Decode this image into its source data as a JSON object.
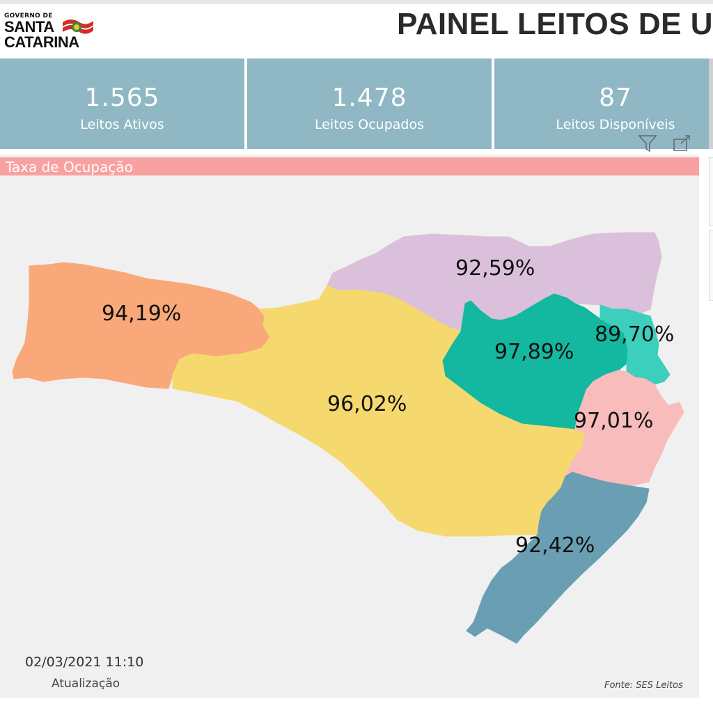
{
  "header": {
    "logo_line_gov": "GOVERNO DE",
    "logo_line_1": "SANTA",
    "logo_line_2": "CATARINA",
    "title": "PAINEL LEITOS DE U"
  },
  "kpis": [
    {
      "value": "1.565",
      "label": "Leitos Ativos"
    },
    {
      "value": "1.478",
      "label": "Leitos Ocupados"
    },
    {
      "value": "87",
      "label": "Leitos Disponíveis"
    }
  ],
  "section_title": "Taxa de Ocupação",
  "map_regions": [
    {
      "name": "oeste",
      "value": "94,19%",
      "color": "#f9a87a"
    },
    {
      "name": "norte",
      "value": "92,59%",
      "color": "#dbc0db"
    },
    {
      "name": "meio-oeste-serra",
      "value": "96,02%",
      "color": "#f5d96e"
    },
    {
      "name": "vale-itajai",
      "value": "97,89%",
      "color": "#14b8a0"
    },
    {
      "name": "foz-itajai",
      "value": "89,70%",
      "color": "#3ccfbe"
    },
    {
      "name": "grande-florianopolis",
      "value": "97,01%",
      "color": "#f9bcbc"
    },
    {
      "name": "sul",
      "value": "92,42%",
      "color": "#6a9fb3"
    }
  ],
  "footer": {
    "date": "02/03/2021 11:10",
    "update_label": "Atualização",
    "source": "Fonte: SES Leitos"
  },
  "icons": [
    "filter-icon",
    "focus-mode-icon"
  ]
}
